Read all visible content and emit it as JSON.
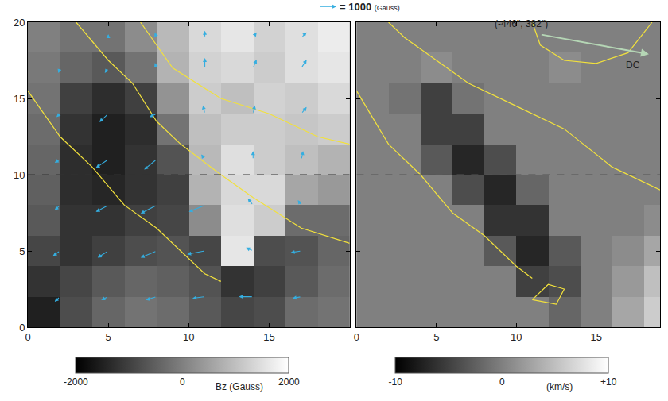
{
  "chart_data": [
    {
      "type": "heatmap",
      "xlim": [
        0,
        20
      ],
      "ylim": [
        0,
        20
      ],
      "xticks": [
        0,
        5,
        10,
        15
      ],
      "yticks": [
        0,
        5,
        10,
        15,
        20
      ],
      "x": [
        1,
        3,
        5,
        7,
        9,
        11,
        13,
        15,
        17,
        19
      ],
      "y": [
        1,
        3,
        5,
        7,
        9,
        11,
        13,
        15,
        17,
        19
      ],
      "z": [
        [
          -1500,
          -800,
          -400,
          -200,
          -300,
          -600,
          -900,
          -800,
          -300,
          -200
        ],
        [
          -1200,
          -900,
          -600,
          -400,
          -500,
          -700,
          -1200,
          -1000,
          -600,
          -300
        ],
        [
          -900,
          -1200,
          -1000,
          -800,
          -700,
          -900,
          1600,
          -800,
          -700,
          -400
        ],
        [
          -600,
          -1200,
          -1200,
          -1000,
          -900,
          200,
          1500,
          1200,
          -300,
          -300
        ],
        [
          -500,
          -1300,
          -1400,
          -1200,
          -1000,
          800,
          1400,
          1400,
          600,
          400
        ],
        [
          -400,
          -1300,
          -1500,
          -1200,
          -700,
          900,
          1500,
          1200,
          1000,
          800
        ],
        [
          -300,
          -1200,
          -1500,
          -1300,
          -200,
          1000,
          1200,
          1200,
          1100,
          1200
        ],
        [
          -200,
          -1000,
          -1300,
          -1000,
          300,
          1200,
          1000,
          1300,
          1200,
          1400
        ],
        [
          -100,
          -400,
          -600,
          -200,
          800,
          1300,
          1400,
          1200,
          1500,
          1600
        ],
        [
          0,
          -200,
          -200,
          200,
          900,
          1400,
          1600,
          1300,
          1500,
          1700
        ]
      ],
      "colorbar": {
        "range": [
          -2000,
          2000
        ],
        "ticks": [
          -2000,
          0,
          2000
        ],
        "title": "Bz (Gauss)"
      },
      "vectors": {
        "key": {
          "value": 1000,
          "label": "= 1000",
          "unit": "(Gauss)"
        },
        "arrows": [
          [
            2,
            2,
            -300,
            -300
          ],
          [
            5,
            2,
            -400,
            -200
          ],
          [
            8,
            2,
            -600,
            -200
          ],
          [
            11,
            2,
            -700,
            -100
          ],
          [
            14,
            2,
            -800,
            0
          ],
          [
            17,
            2,
            -500,
            -100
          ],
          [
            2,
            5,
            -400,
            -300
          ],
          [
            5,
            5,
            -600,
            -400
          ],
          [
            8,
            5,
            -900,
            -400
          ],
          [
            11,
            5,
            -1000,
            -200
          ],
          [
            14,
            5,
            -400,
            200
          ],
          [
            17,
            5,
            -600,
            -100
          ],
          [
            2,
            8,
            -300,
            -300
          ],
          [
            5,
            8,
            -700,
            -400
          ],
          [
            8,
            8,
            -900,
            -500
          ],
          [
            11,
            8,
            -900,
            -400
          ],
          [
            14,
            8,
            -300,
            400
          ],
          [
            17,
            8,
            -200,
            300
          ],
          [
            2,
            11,
            -300,
            -200
          ],
          [
            5,
            11,
            -700,
            -500
          ],
          [
            8,
            11,
            -700,
            -600
          ],
          [
            11,
            11,
            -200,
            300
          ],
          [
            14,
            11,
            0,
            500
          ],
          [
            17,
            11,
            100,
            500
          ],
          [
            2,
            14,
            -200,
            -200
          ],
          [
            5,
            14,
            -500,
            -500
          ],
          [
            8,
            14,
            -400,
            -200
          ],
          [
            11,
            14,
            -100,
            500
          ],
          [
            14,
            14,
            100,
            500
          ],
          [
            17,
            14,
            300,
            400
          ],
          [
            2,
            17,
            -100,
            -300
          ],
          [
            5,
            17,
            -200,
            -300
          ],
          [
            8,
            17,
            -100,
            300
          ],
          [
            11,
            17,
            0,
            600
          ],
          [
            14,
            17,
            200,
            500
          ],
          [
            17,
            17,
            300,
            500
          ],
          [
            2,
            19,
            -100,
            -100
          ],
          [
            5,
            19,
            0,
            200
          ],
          [
            8,
            19,
            -100,
            300
          ],
          [
            11,
            19,
            0,
            400
          ],
          [
            14,
            19,
            200,
            300
          ],
          [
            17,
            19,
            300,
            300
          ]
        ]
      },
      "contours": [
        [
          [
            0,
            15.5
          ],
          [
            2,
            12.5
          ],
          [
            4,
            10.5
          ],
          [
            6,
            8
          ],
          [
            8,
            6.5
          ],
          [
            10,
            4.5
          ],
          [
            11,
            3.5
          ],
          [
            12,
            3
          ]
        ],
        [
          [
            3,
            20
          ],
          [
            5,
            17.5
          ],
          [
            6.5,
            16
          ],
          [
            8,
            13.5
          ],
          [
            9.5,
            12
          ],
          [
            12,
            10
          ],
          [
            14,
            8.5
          ],
          [
            17,
            6.5
          ],
          [
            20,
            5.5
          ]
        ],
        [
          [
            7,
            20
          ],
          [
            9,
            17
          ],
          [
            12,
            15
          ],
          [
            15,
            14
          ],
          [
            18,
            12.5
          ],
          [
            20,
            12
          ]
        ]
      ],
      "dashed_line_y": 10
    },
    {
      "type": "heatmap",
      "xlim": [
        0,
        19
      ],
      "ylim": [
        0,
        20
      ],
      "xticks": [
        0,
        5,
        10,
        15
      ],
      "yticks": [
        0,
        5,
        10,
        15,
        20
      ],
      "tick_labels": "x",
      "x": [
        1,
        3,
        5,
        7,
        9,
        11,
        13,
        15,
        17,
        19
      ],
      "y": [
        1,
        3,
        5,
        7,
        9,
        11,
        13,
        15,
        17,
        19
      ],
      "z": [
        [
          0,
          0,
          0,
          0,
          0,
          0,
          -2,
          0,
          3,
          6
        ],
        [
          0,
          0,
          0,
          0,
          0,
          -5,
          -4,
          0,
          2,
          5
        ],
        [
          0,
          0,
          0,
          0,
          -3,
          -7,
          -3,
          0,
          1,
          3
        ],
        [
          0,
          0,
          0,
          0,
          -6,
          -6,
          0,
          0,
          0,
          1
        ],
        [
          0,
          0,
          0,
          -4,
          -7,
          -2,
          0,
          0,
          0,
          0
        ],
        [
          0,
          0,
          -3,
          -7,
          -4,
          0,
          0,
          0,
          0,
          0
        ],
        [
          0,
          0,
          -5,
          -5,
          0,
          0,
          0,
          0,
          0,
          0
        ],
        [
          0,
          -1,
          -5,
          -1,
          0,
          0,
          0,
          0,
          0,
          0
        ],
        [
          0,
          0,
          1,
          0,
          0,
          0,
          1,
          0,
          0,
          0
        ],
        [
          0,
          0,
          0,
          0,
          0,
          0,
          0,
          0,
          0,
          0
        ]
      ],
      "colorbar": {
        "range": [
          -10,
          10
        ],
        "ticks": [
          -10,
          0,
          {
            "value": 10,
            "label": "+10"
          }
        ],
        "title": "(km/s)"
      },
      "contours": [
        [
          [
            0,
            15.5
          ],
          [
            2,
            12
          ],
          [
            4,
            10
          ],
          [
            6,
            7.5
          ],
          [
            8,
            6
          ],
          [
            10,
            4
          ],
          [
            11,
            3.2
          ]
        ],
        [
          [
            2,
            20
          ],
          [
            3,
            19
          ],
          [
            5,
            17.5
          ],
          [
            7,
            16
          ],
          [
            10,
            14.5
          ],
          [
            13,
            13
          ],
          [
            16,
            10.5
          ],
          [
            19,
            9
          ]
        ],
        [
          [
            11,
            20
          ],
          [
            11.5,
            18.5
          ],
          [
            13,
            17.5
          ],
          [
            15,
            17.3
          ],
          [
            17,
            18
          ],
          [
            18.5,
            20
          ]
        ],
        [
          [
            11,
            1.8
          ],
          [
            12,
            2.8
          ],
          [
            13,
            2.5
          ],
          [
            12.5,
            1.5
          ],
          [
            11,
            1.8
          ]
        ]
      ],
      "dashed_line_y": 10,
      "annotations": [
        {
          "text": "(-446\", 382\")",
          "x": 10.3,
          "y": 19.9
        },
        {
          "text": "DC",
          "x": 17.3,
          "y": 17.2,
          "arrow_from": [
            11.5,
            19.2
          ],
          "arrow_to": [
            18.3,
            17.9
          ]
        }
      ]
    }
  ]
}
